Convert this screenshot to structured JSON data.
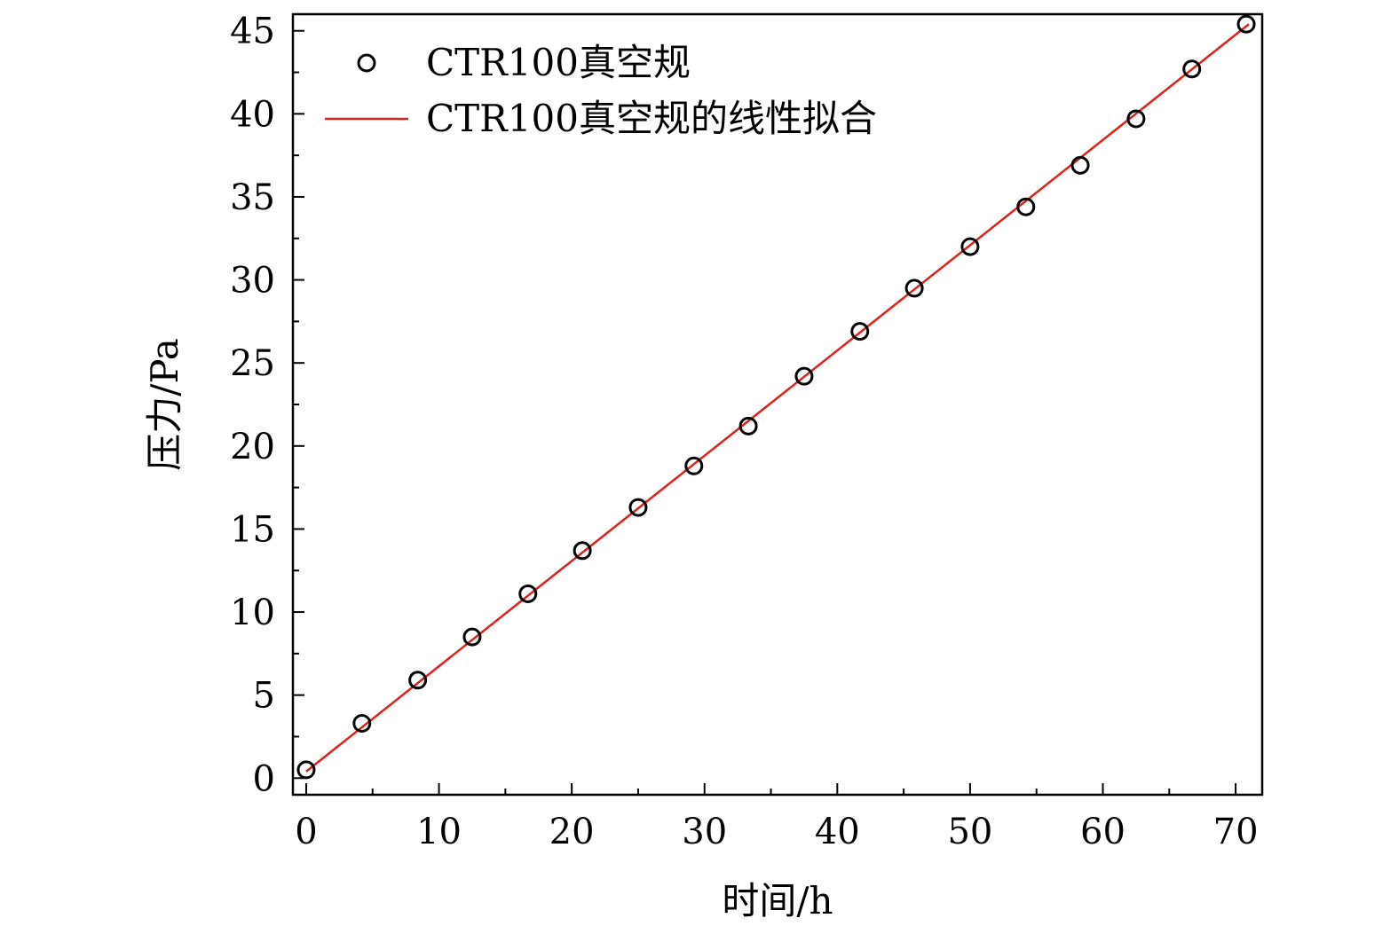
{
  "chart_data": {
    "type": "scatter",
    "title": "",
    "xlabel": "时间/h",
    "ylabel": "压力/Pa",
    "xlim": [
      -1,
      72
    ],
    "ylim": [
      -1,
      46
    ],
    "x_ticks": [
      0,
      10,
      20,
      30,
      40,
      50,
      60,
      70
    ],
    "y_ticks": [
      0,
      5,
      10,
      15,
      20,
      25,
      30,
      35,
      40,
      45
    ],
    "grid": false,
    "legend_position": "top-left",
    "series": [
      {
        "name": "CTR100真空规",
        "kind": "scatter",
        "marker": "open-circle",
        "color": "#000000",
        "x": [
          0,
          4.2,
          8.4,
          12.5,
          16.7,
          20.8,
          25.0,
          29.2,
          33.3,
          37.5,
          41.7,
          45.8,
          50.0,
          54.2,
          58.3,
          62.5,
          66.7,
          70.8
        ],
        "y": [
          0.5,
          3.3,
          5.9,
          8.5,
          11.1,
          13.7,
          16.3,
          18.8,
          21.2,
          24.2,
          26.9,
          29.5,
          32.0,
          34.4,
          36.9,
          39.7,
          42.7,
          45.4
        ]
      },
      {
        "name": "CTR100真空规的线性拟合",
        "kind": "line",
        "color": "#e0201b",
        "x": [
          0,
          71
        ],
        "y": [
          0.4,
          45.4
        ]
      }
    ]
  }
}
